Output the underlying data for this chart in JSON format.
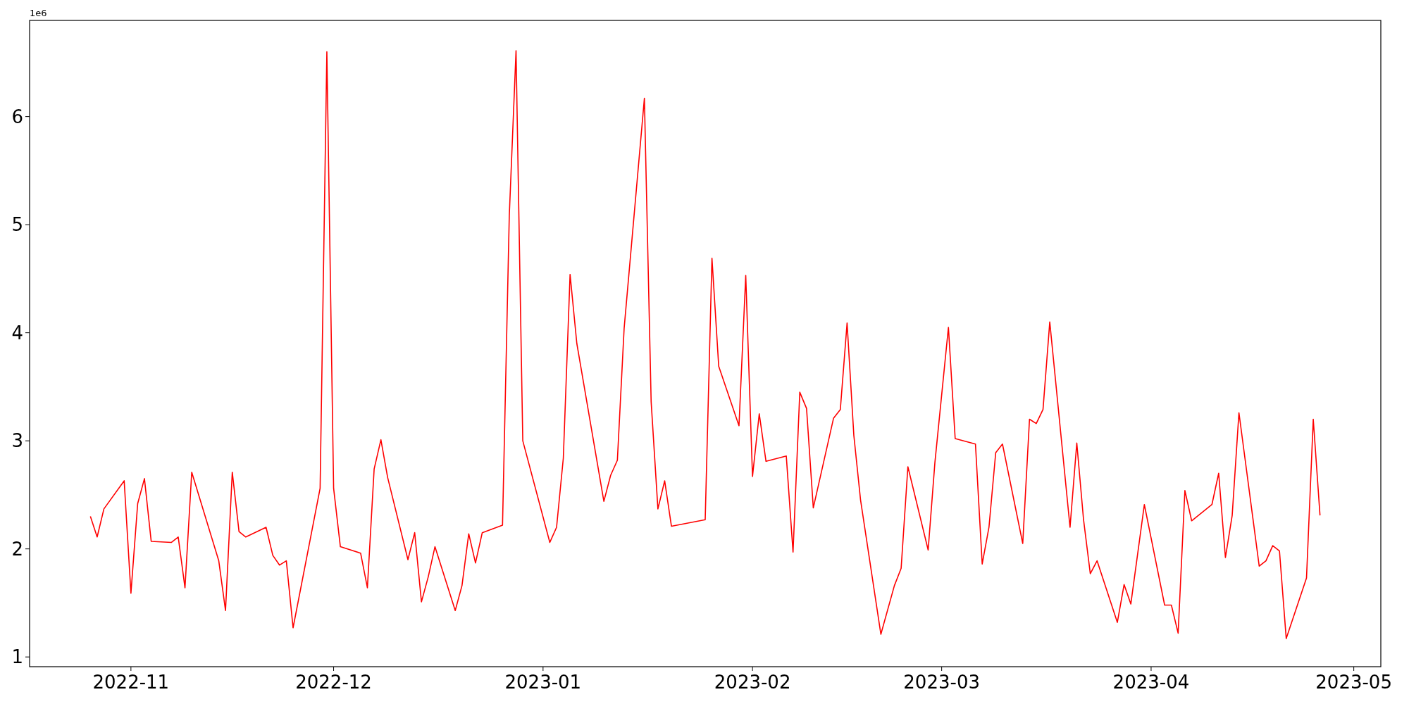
{
  "chart_data": {
    "type": "line",
    "x": [
      "2022-10-26",
      "2022-10-27",
      "2022-10-28",
      "2022-10-31",
      "2022-11-01",
      "2022-11-02",
      "2022-11-03",
      "2022-11-04",
      "2022-11-07",
      "2022-11-08",
      "2022-11-09",
      "2022-11-10",
      "2022-11-14",
      "2022-11-15",
      "2022-11-16",
      "2022-11-17",
      "2022-11-18",
      "2022-11-21",
      "2022-11-22",
      "2022-11-23",
      "2022-11-24",
      "2022-11-25",
      "2022-11-29",
      "2022-11-30",
      "2022-12-01",
      "2022-12-02",
      "2022-12-05",
      "2022-12-06",
      "2022-12-07",
      "2022-12-08",
      "2022-12-09",
      "2022-12-12",
      "2022-12-13",
      "2022-12-14",
      "2022-12-15",
      "2022-12-16",
      "2022-12-19",
      "2022-12-20",
      "2022-12-21",
      "2022-12-22",
      "2022-12-23",
      "2022-12-26",
      "2022-12-27",
      "2022-12-28",
      "2022-12-29",
      "2023-01-02",
      "2023-01-03",
      "2023-01-04",
      "2023-01-05",
      "2023-01-06",
      "2023-01-10",
      "2023-01-11",
      "2023-01-12",
      "2023-01-13",
      "2023-01-16",
      "2023-01-17",
      "2023-01-18",
      "2023-01-19",
      "2023-01-20",
      "2023-01-25",
      "2023-01-26",
      "2023-01-27",
      "2023-01-30",
      "2023-01-31",
      "2023-02-01",
      "2023-02-02",
      "2023-02-03",
      "2023-02-06",
      "2023-02-07",
      "2023-02-08",
      "2023-02-09",
      "2023-02-10",
      "2023-02-13",
      "2023-02-14",
      "2023-02-15",
      "2023-02-16",
      "2023-02-17",
      "2023-02-20",
      "2023-02-22",
      "2023-02-23",
      "2023-02-24",
      "2023-02-27",
      "2023-02-28",
      "2023-03-02",
      "2023-03-03",
      "2023-03-06",
      "2023-03-07",
      "2023-03-08",
      "2023-03-09",
      "2023-03-10",
      "2023-03-13",
      "2023-03-14",
      "2023-03-15",
      "2023-03-16",
      "2023-03-17",
      "2023-03-20",
      "2023-03-21",
      "2023-03-22",
      "2023-03-23",
      "2023-03-24",
      "2023-03-27",
      "2023-03-28",
      "2023-03-29",
      "2023-03-31",
      "2023-04-03",
      "2023-04-04",
      "2023-04-05",
      "2023-04-06",
      "2023-04-07",
      "2023-04-10",
      "2023-04-11",
      "2023-04-12",
      "2023-04-13",
      "2023-04-14",
      "2023-04-17",
      "2023-04-18",
      "2023-04-19",
      "2023-04-20",
      "2023-04-21",
      "2023-04-24",
      "2023-04-25",
      "2023-04-26"
    ],
    "series": [
      {
        "color": "#ff0000",
        "values": [
          2.3,
          2.11,
          2.37,
          2.63,
          1.59,
          2.42,
          2.65,
          2.07,
          2.06,
          2.11,
          1.64,
          2.71,
          1.89,
          1.43,
          2.71,
          2.16,
          2.11,
          2.2,
          1.94,
          1.85,
          1.89,
          1.27,
          2.56,
          6.6,
          2.56,
          2.02,
          1.96,
          1.64,
          2.74,
          3.01,
          2.66,
          1.9,
          2.15,
          1.51,
          1.74,
          2.02,
          1.43,
          1.66,
          2.14,
          1.87,
          2.15,
          2.22,
          5.08,
          6.61,
          3.0,
          2.06,
          2.2,
          2.84,
          4.54,
          3.9,
          2.44,
          2.68,
          2.82,
          4.04,
          6.17,
          3.36,
          2.37,
          2.63,
          2.21,
          2.27,
          4.69,
          3.69,
          3.14,
          4.53,
          2.67,
          3.25,
          2.81,
          2.86,
          1.97,
          3.45,
          3.3,
          2.38,
          3.21,
          3.29,
          4.09,
          3.05,
          2.45,
          1.21,
          1.66,
          1.82,
          2.76,
          1.99,
          2.8,
          4.05,
          3.02,
          2.97,
          1.86,
          2.2,
          2.89,
          2.97,
          2.05,
          3.2,
          3.16,
          3.29,
          4.1,
          2.2,
          2.98,
          2.27,
          1.77,
          1.89,
          1.32,
          1.67,
          1.49,
          2.41,
          1.48,
          1.48,
          1.22,
          2.54,
          2.26,
          2.41,
          2.7,
          1.92,
          2.31,
          3.26,
          1.84,
          1.89,
          2.03,
          1.98,
          1.17,
          1.73,
          3.2,
          2.31
        ]
      }
    ],
    "xlim": [
      "2022-10-17",
      "2023-05-05"
    ],
    "xticks": [
      {
        "value": "2022-11-01",
        "label": "2022-11"
      },
      {
        "value": "2022-12-01",
        "label": "2022-12"
      },
      {
        "value": "2023-01-01",
        "label": "2023-01"
      },
      {
        "value": "2023-02-01",
        "label": "2023-02"
      },
      {
        "value": "2023-03-01",
        "label": "2023-03"
      },
      {
        "value": "2023-04-01",
        "label": "2023-04"
      },
      {
        "value": "2023-05-01",
        "label": "2023-05"
      }
    ],
    "ylim": [
      0.91,
      6.89
    ],
    "yticks": [
      1,
      2,
      3,
      4,
      5,
      6
    ],
    "annotations": [
      "1e6"
    ]
  }
}
